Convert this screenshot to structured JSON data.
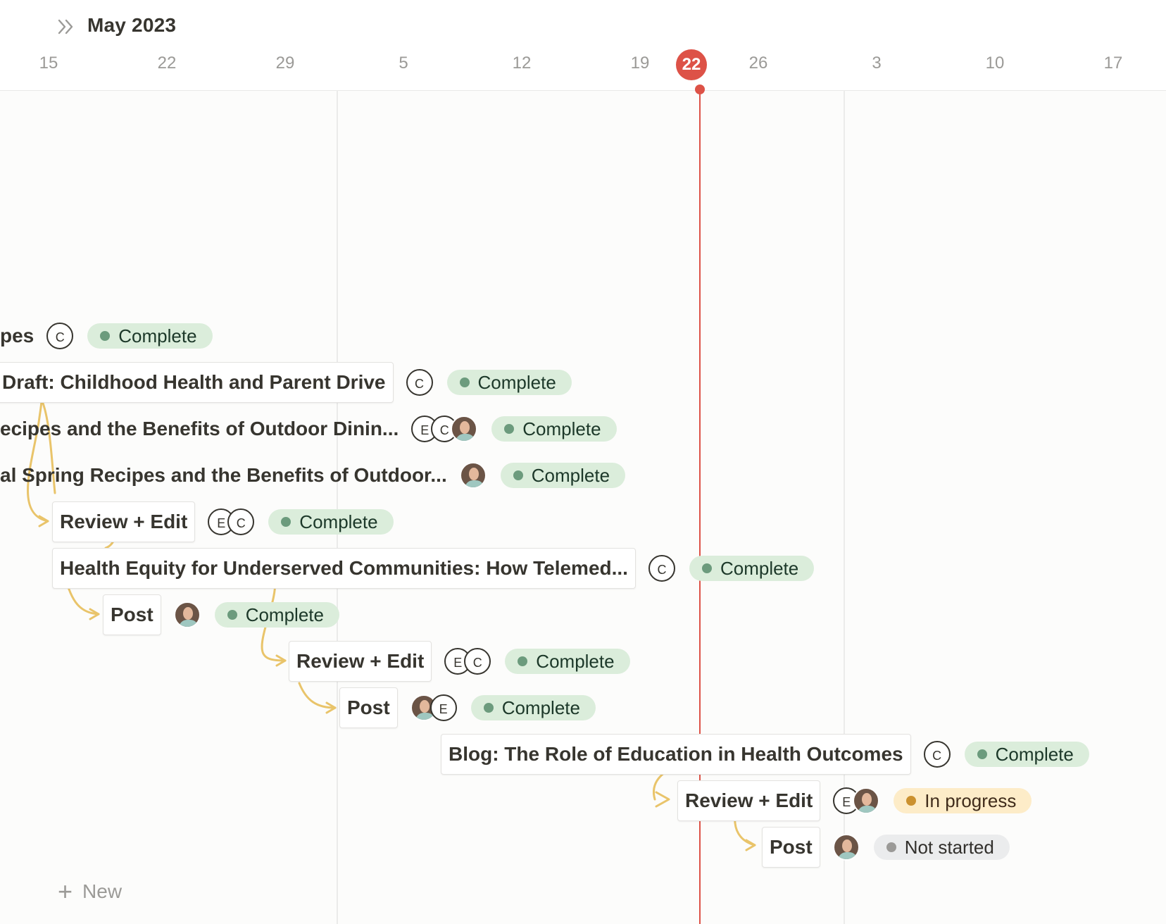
{
  "header": {
    "month": "May 2023",
    "ticks": [
      "15",
      "22",
      "29",
      "5",
      "12",
      "19",
      "26",
      "3",
      "10",
      "17"
    ],
    "today": "22"
  },
  "rows": [
    {
      "title": "pes",
      "people": [
        "C"
      ],
      "status": "Complete",
      "status_type": "complete"
    },
    {
      "title": "Draft: Childhood Health and Parent Drive",
      "people": [
        "C"
      ],
      "status": "Complete",
      "status_type": "complete"
    },
    {
      "title": "ecipes and the Benefits of Outdoor Dinin...",
      "people": [
        "E",
        "C",
        "photo"
      ],
      "status": "Complete",
      "status_type": "complete"
    },
    {
      "title": "al Spring Recipes and the Benefits of Outdoor...",
      "people": [
        "photo"
      ],
      "status": "Complete",
      "status_type": "complete"
    },
    {
      "title": "Review + Edit",
      "people": [
        "E",
        "C"
      ],
      "status": "Complete",
      "status_type": "complete"
    },
    {
      "title": "Health Equity for Underserved Communities: How Telemed...",
      "people": [
        "C"
      ],
      "status": "Complete",
      "status_type": "complete"
    },
    {
      "title": "Post",
      "people": [
        "photo"
      ],
      "status": "Complete",
      "status_type": "complete"
    },
    {
      "title": "Review + Edit",
      "people": [
        "E",
        "C"
      ],
      "status": "Complete",
      "status_type": "complete"
    },
    {
      "title": "Post",
      "people": [
        "photo",
        "E"
      ],
      "status": "Complete",
      "status_type": "complete"
    },
    {
      "title": "Blog: The Role of Education in Health Outcomes",
      "people": [
        "C"
      ],
      "status": "Complete",
      "status_type": "complete"
    },
    {
      "title": "Review + Edit",
      "people": [
        "E",
        "photo"
      ],
      "status": "In progress",
      "status_type": "progress"
    },
    {
      "title": "Post",
      "people": [
        "photo"
      ],
      "status": "Not started",
      "status_type": "notstarted"
    }
  ],
  "footer": {
    "new_label": "New"
  },
  "colors": {
    "today": "#dd5247",
    "dependency": "#e9c46a",
    "complete": "#dbeddb",
    "in_progress": "#fdecc8",
    "not_started": "#ebeced"
  }
}
